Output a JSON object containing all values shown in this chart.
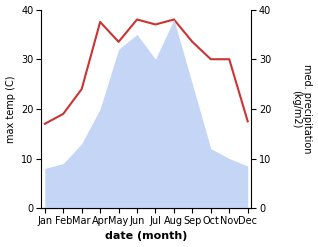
{
  "months": [
    "Jan",
    "Feb",
    "Mar",
    "Apr",
    "May",
    "Jun",
    "Jul",
    "Aug",
    "Sep",
    "Oct",
    "Nov",
    "Dec"
  ],
  "temperature": [
    17,
    19,
    24,
    37.5,
    33.5,
    38,
    37,
    38,
    33.5,
    30,
    30,
    17.5
  ],
  "precipitation": [
    8,
    9,
    13,
    20,
    32,
    35,
    30,
    38,
    25,
    12,
    10,
    8.5
  ],
  "temp_color": "#cc3333",
  "precip_fill_color": "#c5d5f5",
  "xlabel": "date (month)",
  "ylabel_left": "max temp (C)",
  "ylabel_right": "med. precipitation\n(kg/m2)",
  "ylim_left": [
    0,
    40
  ],
  "ylim_right": [
    0,
    40
  ],
  "yticks_left": [
    0,
    10,
    20,
    30,
    40
  ],
  "yticks_right": [
    0,
    10,
    20,
    30,
    40
  ],
  "background_color": "#ffffff",
  "label_fontsize": 7,
  "tick_fontsize": 7
}
